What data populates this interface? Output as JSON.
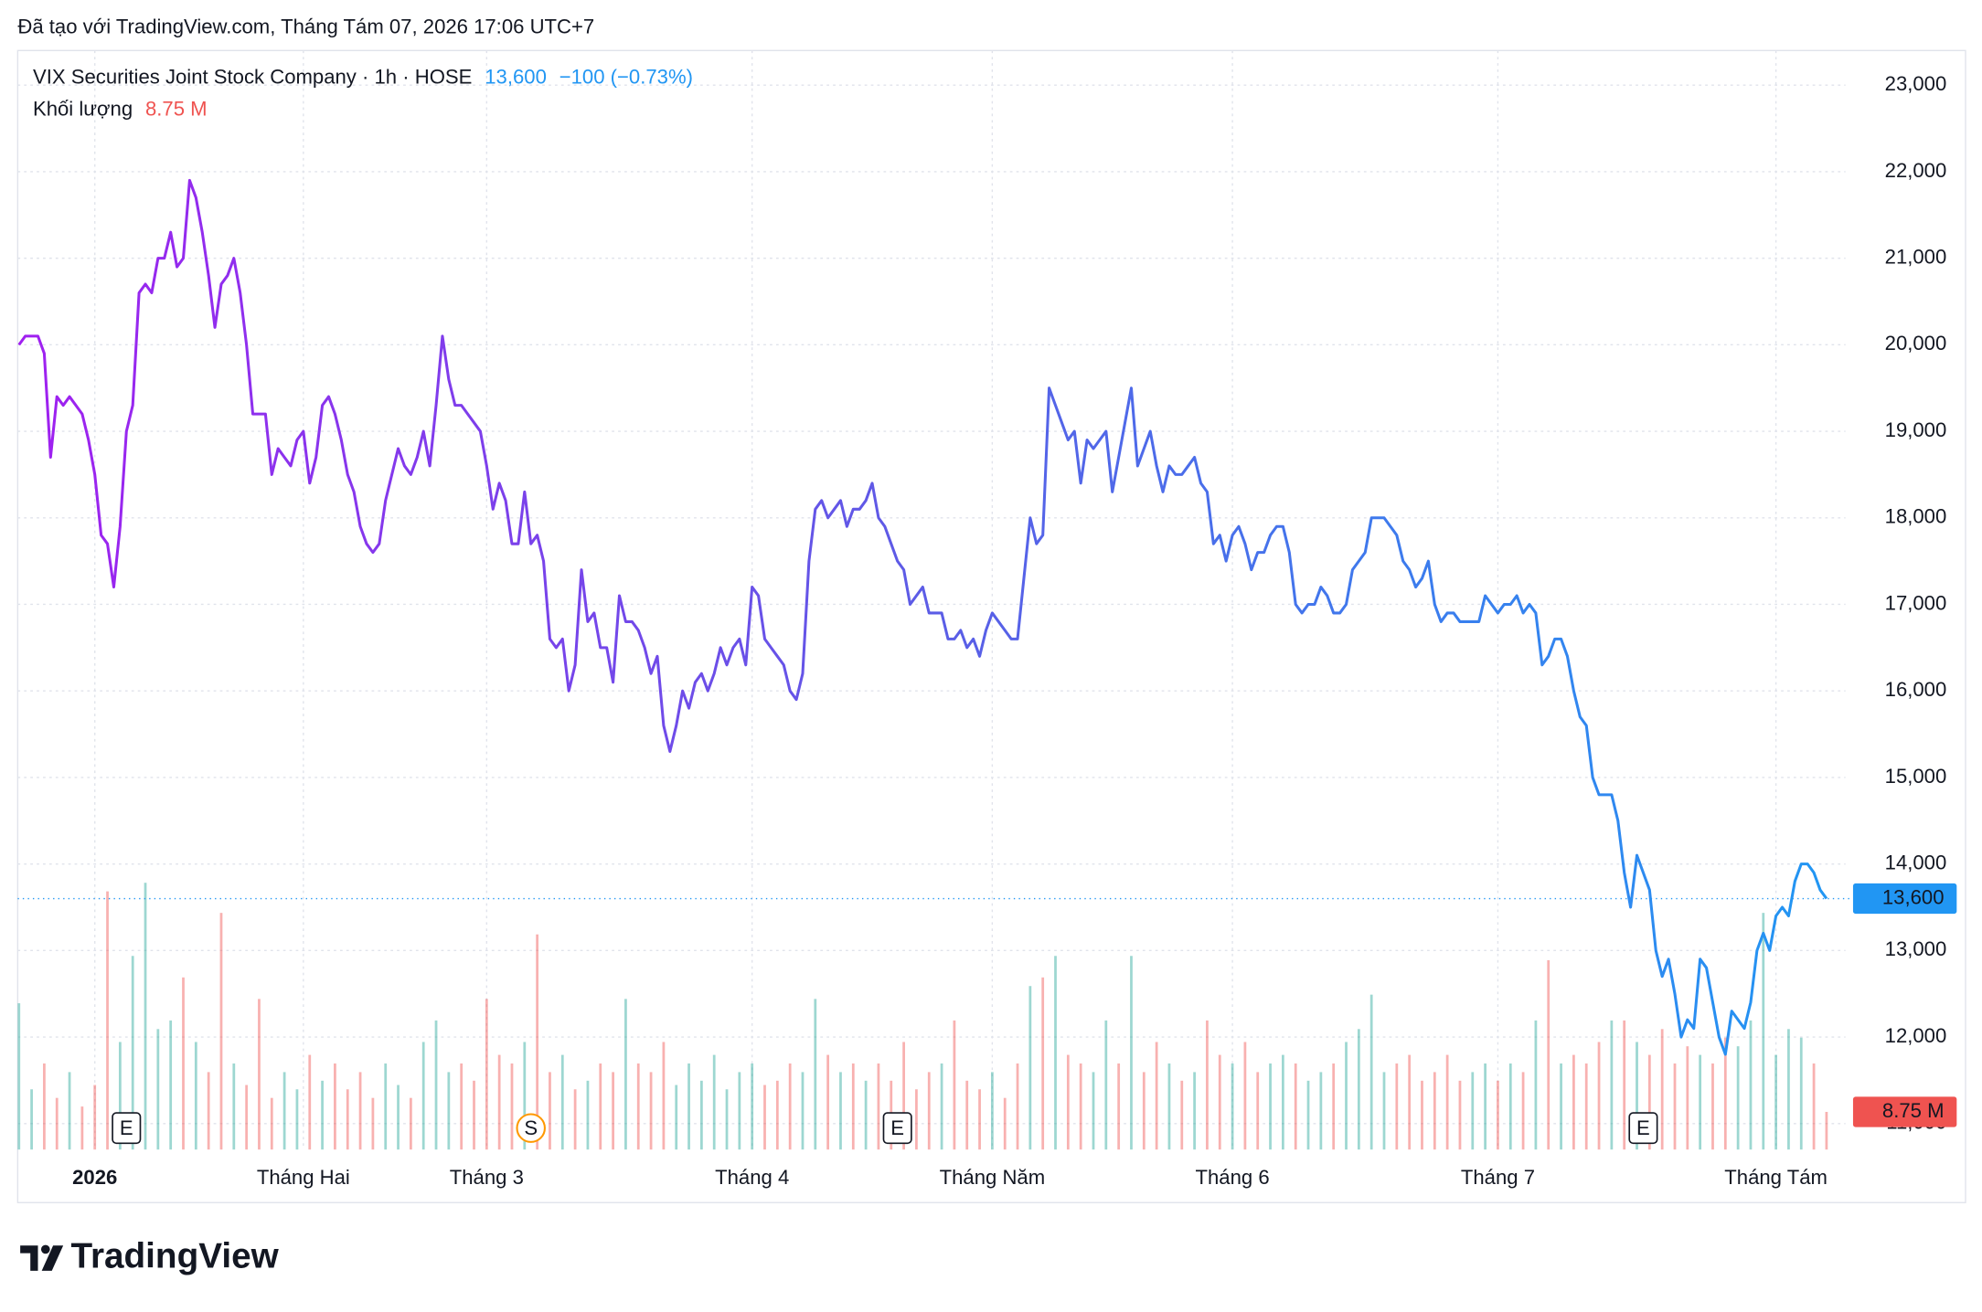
{
  "header": {
    "text": "Đã tạo với TradingView.com, Tháng Tám 07, 2026 17:06 UTC+7"
  },
  "footer": {
    "logo": "TradingView"
  },
  "chart_data": {
    "type": "line",
    "title": "VIX Securities Joint Stock Company · 1h · HOSE",
    "price_label": "13,600",
    "change_label": "−100 (−0.73%)",
    "volume_title": "Khối lượng",
    "volume_label": "8.75 M",
    "line_gradient": [
      "#a020f0",
      "#5c5ce6",
      "#2196f3"
    ],
    "values": [
      20000,
      20100,
      20100,
      20100,
      19900,
      18700,
      19400,
      19300,
      19400,
      19300,
      19200,
      18900,
      18500,
      17800,
      17700,
      17200,
      17900,
      19000,
      19300,
      20600,
      20700,
      20600,
      21000,
      21000,
      21300,
      20900,
      21000,
      21900,
      21700,
      21300,
      20800,
      20200,
      20700,
      20800,
      21000,
      20600,
      20000,
      19200,
      19200,
      19200,
      18500,
      18800,
      18700,
      18600,
      18900,
      19000,
      18400,
      18700,
      19300,
      19400,
      19200,
      18900,
      18500,
      18300,
      17900,
      17700,
      17600,
      17700,
      18200,
      18500,
      18800,
      18600,
      18500,
      18700,
      19000,
      18600,
      19300,
      20100,
      19600,
      19300,
      19300,
      19200,
      19100,
      19000,
      18600,
      18100,
      18400,
      18200,
      17700,
      17700,
      18300,
      17700,
      17800,
      17500,
      16600,
      16500,
      16600,
      16000,
      16300,
      17400,
      16800,
      16900,
      16500,
      16500,
      16100,
      17100,
      16800,
      16800,
      16700,
      16500,
      16200,
      16400,
      15600,
      15300,
      15600,
      16000,
      15800,
      16100,
      16200,
      16000,
      16200,
      16500,
      16300,
      16500,
      16600,
      16300,
      17200,
      17100,
      16600,
      16500,
      16400,
      16300,
      16000,
      15900,
      16200,
      17500,
      18100,
      18200,
      18000,
      18100,
      18200,
      17900,
      18100,
      18100,
      18200,
      18400,
      18000,
      17900,
      17700,
      17500,
      17400,
      17000,
      17100,
      17200,
      16900,
      16900,
      16900,
      16600,
      16600,
      16700,
      16500,
      16600,
      16400,
      16700,
      16900,
      16800,
      16700,
      16600,
      16600,
      17300,
      18000,
      17700,
      17800,
      19500,
      19300,
      19100,
      18900,
      19000,
      18400,
      18900,
      18800,
      18900,
      19000,
      18300,
      18700,
      19100,
      19500,
      18600,
      18800,
      19000,
      18600,
      18300,
      18600,
      18500,
      18500,
      18600,
      18700,
      18400,
      18300,
      17700,
      17800,
      17500,
      17800,
      17900,
      17700,
      17400,
      17600,
      17600,
      17800,
      17900,
      17900,
      17600,
      17000,
      16900,
      17000,
      17000,
      17200,
      17100,
      16900,
      16900,
      17000,
      17400,
      17500,
      17600,
      18000,
      18000,
      18000,
      17900,
      17800,
      17500,
      17400,
      17200,
      17300,
      17500,
      17000,
      16800,
      16900,
      16900,
      16800,
      16800,
      16800,
      16800,
      17100,
      17000,
      16900,
      17000,
      17000,
      17100,
      16900,
      17000,
      16900,
      16300,
      16400,
      16600,
      16600,
      16400,
      16000,
      15700,
      15600,
      15000,
      14800,
      14800,
      14800,
      14500,
      13900,
      13500,
      14100,
      13900,
      13700,
      13000,
      12700,
      12900,
      12500,
      12000,
      12200,
      12100,
      12900,
      12800,
      12400,
      12000,
      11800,
      12300,
      12200,
      12100,
      12400,
      13000,
      13200,
      13000,
      13400,
      13500,
      13400,
      13800,
      14000,
      14000,
      13900,
      13700,
      13600
    ],
    "xlim": [
      0,
      286
    ],
    "xticks": [
      {
        "value": 12,
        "label": "2026"
      },
      {
        "value": 45,
        "label": "Tháng Hai"
      },
      {
        "value": 74,
        "label": "Tháng 3"
      },
      {
        "value": 116,
        "label": "Tháng 4"
      },
      {
        "value": 154,
        "label": "Tháng Năm"
      },
      {
        "value": 192,
        "label": "Tháng 6"
      },
      {
        "value": 234,
        "label": "Tháng 7"
      },
      {
        "value": 278,
        "label": "Tháng Tám"
      }
    ],
    "ylim": [
      10700,
      23400
    ],
    "yticks": [
      {
        "value": 11000,
        "label": "11,000"
      },
      {
        "value": 12000,
        "label": "12,000"
      },
      {
        "value": 13000,
        "label": "13,000"
      },
      {
        "value": 14000,
        "label": "14,000"
      },
      {
        "value": 15000,
        "label": "15,000"
      },
      {
        "value": 16000,
        "label": "16,000"
      },
      {
        "value": 17000,
        "label": "17,000"
      },
      {
        "value": 18000,
        "label": "18,000"
      },
      {
        "value": 19000,
        "label": "19,000"
      },
      {
        "value": 20000,
        "label": "20,000"
      },
      {
        "value": 21000,
        "label": "21,000"
      },
      {
        "value": 22000,
        "label": "22,000"
      },
      {
        "value": 23000,
        "label": "23,000"
      }
    ],
    "grid": true,
    "events": [
      {
        "label": "E",
        "x": 17
      },
      {
        "label": "S",
        "x": 81
      },
      {
        "label": "E",
        "x": 139
      },
      {
        "label": "E",
        "x": 257
      }
    ],
    "volume": {
      "up_color": "#26a69a",
      "down_color": "#ef5350",
      "vlim": [
        0,
        64
      ],
      "values": [
        34,
        14,
        20,
        12,
        18,
        10,
        15,
        60,
        25,
        45,
        62,
        28,
        30,
        40,
        25,
        18,
        55,
        20,
        15,
        35,
        12,
        18,
        14,
        22,
        16,
        20,
        14,
        18,
        12,
        20,
        15,
        12,
        25,
        30,
        18,
        20,
        16,
        35,
        22,
        20,
        25,
        50,
        18,
        22,
        14,
        16,
        20,
        18,
        35,
        20,
        18,
        25,
        15,
        20,
        16,
        22,
        14,
        18,
        20,
        15,
        16,
        20,
        18,
        35,
        22,
        18,
        20,
        16,
        20,
        16,
        25,
        14,
        18,
        20,
        30,
        16,
        14,
        18,
        12,
        20,
        38,
        40,
        45,
        22,
        20,
        18,
        30,
        20,
        45,
        18,
        25,
        20,
        16,
        18,
        30,
        22,
        20,
        25,
        18,
        20,
        22,
        20,
        16,
        18,
        20,
        25,
        28,
        36,
        18,
        20,
        22,
        16,
        18,
        22,
        16,
        18,
        20,
        16,
        20,
        18,
        30,
        44,
        20,
        22,
        20,
        25,
        30,
        30,
        25,
        22,
        28,
        20,
        24,
        22,
        20,
        26,
        24,
        30,
        55,
        22,
        28,
        26,
        20,
        8.75
      ]
    }
  }
}
